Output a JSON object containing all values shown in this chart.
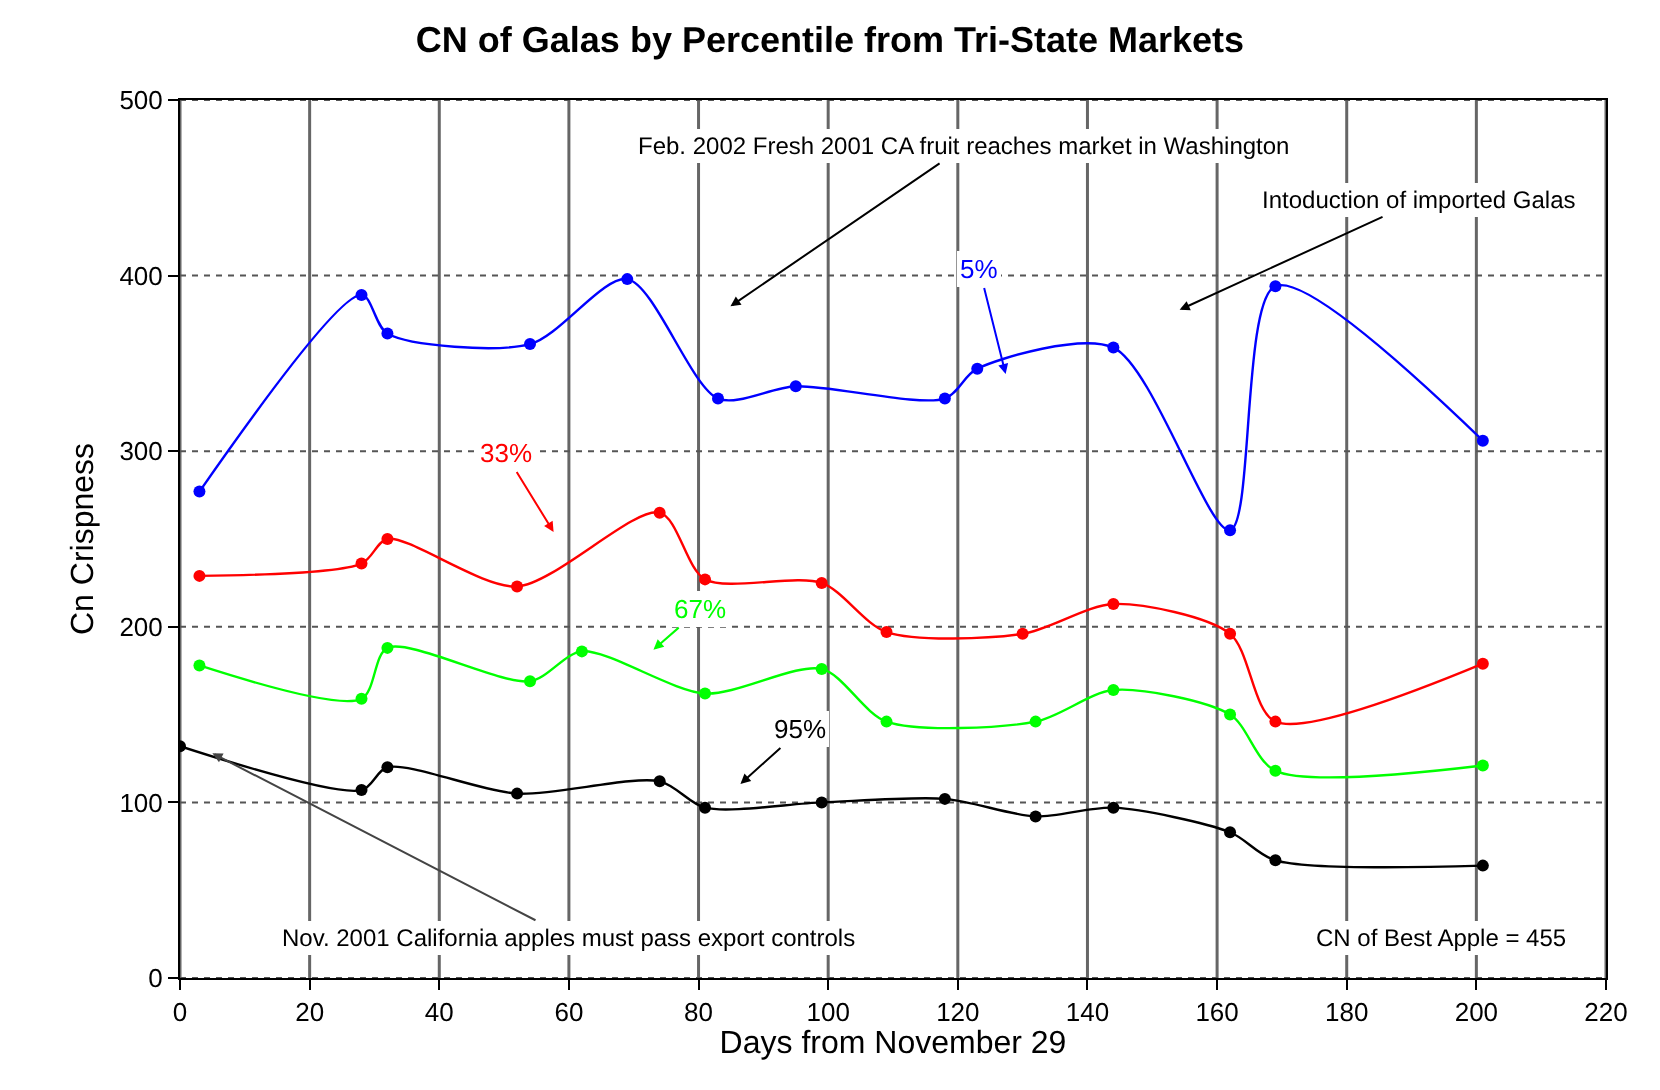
{
  "chart_data": {
    "type": "line",
    "title": "CN of Galas by Percentile from Tri-State Markets",
    "xlabel": "Days from November 29",
    "ylabel": "Cn Crispness",
    "xlim": [
      0,
      220
    ],
    "xticks": [
      0,
      20,
      40,
      60,
      80,
      100,
      120,
      140,
      160,
      180,
      200,
      220
    ],
    "ylim": [
      0,
      500
    ],
    "yticks": [
      0,
      100,
      200,
      300,
      400,
      500
    ],
    "grid": true,
    "marker": "circle",
    "line_style": "solid",
    "series": [
      {
        "color": "#0000ff",
        "x": [
          3,
          28,
          32,
          54,
          69,
          83,
          95,
          118,
          123,
          144,
          162,
          169,
          201
        ],
        "values": [
          277,
          389,
          367,
          361,
          398,
          330,
          337,
          330,
          347,
          359,
          255,
          394,
          306
        ]
      },
      {
        "color": "#ff0000",
        "x": [
          3,
          28,
          32,
          52,
          74,
          81,
          99,
          109,
          130,
          144,
          162,
          169,
          201
        ],
        "values": [
          229,
          236,
          250,
          223,
          265,
          227,
          225,
          197,
          196,
          213,
          196,
          146,
          179
        ]
      },
      {
        "color": "#00ff00",
        "x": [
          3,
          28,
          32,
          54,
          62,
          81,
          99,
          109,
          132,
          144,
          162,
          169,
          201
        ],
        "values": [
          178,
          159,
          188,
          169,
          186,
          162,
          176,
          146,
          146,
          164,
          150,
          118,
          121
        ]
      },
      {
        "color": "#000000",
        "x": [
          0,
          28,
          32,
          52,
          74,
          81,
          99,
          118,
          132,
          144,
          162,
          169,
          201
        ],
        "values": [
          132,
          107,
          120,
          105,
          112,
          97,
          100,
          102,
          92,
          97,
          83,
          67,
          64
        ]
      }
    ],
    "annotations": [
      "5%",
      "33%",
      "67%",
      "95%",
      "Feb. 2002 Fresh 2001 CA fruit reaches market in Washington",
      "Intoduction of imported Galas",
      {
        "text": "Nov. 2001 California apples must pass export controls",
        "x": 5,
        "y": 128
      },
      "CN of Best Apple = 455"
    ]
  }
}
